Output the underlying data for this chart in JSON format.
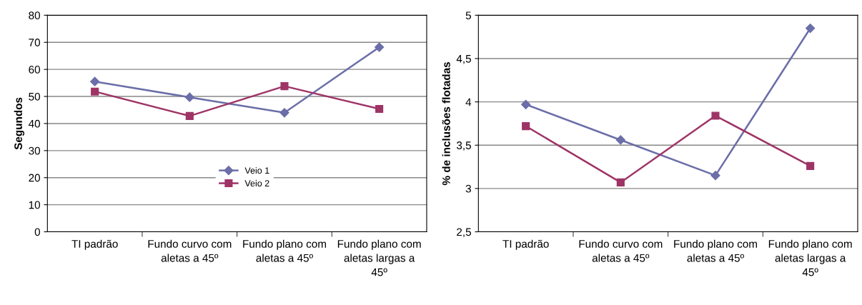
{
  "chart_data": [
    {
      "type": "line",
      "ylabel": "Segundos",
      "categories": [
        "TI padrão",
        "Fundo curvo com aletas a 45º",
        "Fundo plano com aletas a 45º",
        "Fundo plano com aletas largas a 45º"
      ],
      "series": [
        {
          "name": "Veio 1",
          "color": "#6b6ea8",
          "marker": "diamond",
          "values": [
            55.5,
            49.7,
            44,
            68.2
          ]
        },
        {
          "name": "Veio 2",
          "color": "#9e3466",
          "marker": "square",
          "values": [
            51.8,
            42.8,
            53.8,
            45.4
          ]
        }
      ],
      "ylim": [
        0,
        80
      ],
      "yticks": [
        0,
        10,
        20,
        30,
        40,
        50,
        60,
        70,
        80
      ],
      "grid": "y",
      "legend": "center"
    },
    {
      "type": "line",
      "ylabel": "% de inclusões flotadas",
      "categories": [
        "TI padrão",
        "Fundo curvo com aletas a 45º",
        "Fundo plano com aletas a 45º",
        "Fundo plano com aletas largas a 45º"
      ],
      "series": [
        {
          "color": "#6b6ea8",
          "marker": "diamond",
          "values": [
            3.97,
            3.56,
            3.15,
            4.85
          ]
        },
        {
          "color": "#9e3466",
          "marker": "square",
          "values": [
            3.72,
            3.07,
            3.84,
            3.26
          ]
        }
      ],
      "ylim": [
        2.5,
        5
      ],
      "yticks": [
        {
          "value": 2.5,
          "label": "2,5"
        },
        3,
        {
          "value": 3.5,
          "label": "3,5"
        },
        4,
        {
          "value": 4.5,
          "label": "4,5"
        },
        5
      ],
      "grid": "y"
    }
  ]
}
